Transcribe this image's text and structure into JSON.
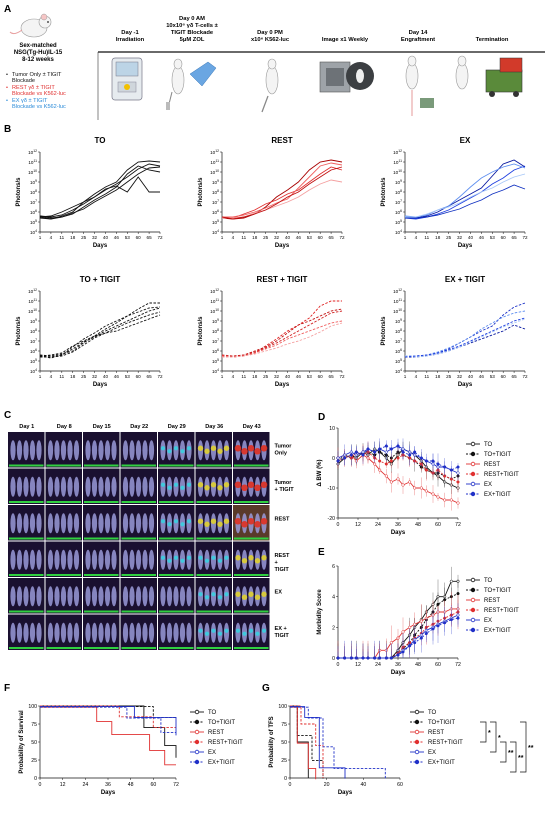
{
  "panel_letters": [
    "A",
    "B",
    "C",
    "D",
    "E",
    "F",
    "G"
  ],
  "panel_a": {
    "mouse": {
      "line1": "Sex-matched",
      "line2": "NSG(Tg-Hu)IL-15",
      "line3": "8-12 weeks"
    },
    "legend": [
      {
        "text": "Tumor Only ± TIGIT",
        "text2": "Blockade",
        "color": "#111111"
      },
      {
        "text": "REST γδ ± TIGIT",
        "text2": "Blockade vs K562-luc",
        "color": "#e03030"
      },
      {
        "text": "EX γδ ± TIGIT",
        "text2": "Blockade vs K562-luc",
        "color": "#2a8ad8"
      }
    ],
    "timeline": [
      {
        "l1": "Day -1",
        "l2": "Irradiation",
        "l3": "",
        "l4": ""
      },
      {
        "l1": "Day 0 AM",
        "l2": "10x10⁶ γδ T-cells ±",
        "l3": "TIGIT Blockade",
        "l4": "5μM ZOL"
      },
      {
        "l1": "Day 0 PM",
        "l2": "x10⁶ K562-luc",
        "l3": "",
        "l4": ""
      },
      {
        "l1": "Image x1 Weekly",
        "l2": "",
        "l3": "",
        "l4": ""
      },
      {
        "l1": "Day 14",
        "l2": "Engraftment",
        "l3": "",
        "l4": ""
      },
      {
        "l1": "Termination",
        "l2": "",
        "l3": "",
        "l4": ""
      }
    ]
  },
  "panel_b": {
    "ylabel": "Photons/s",
    "xlabel": "Days",
    "xticks": [
      "1",
      "4",
      "11",
      "18",
      "25",
      "32",
      "40",
      "46",
      "53",
      "60",
      "65",
      "72"
    ],
    "yticks_exp": [
      "4",
      "5",
      "6",
      "7",
      "8",
      "9",
      "10",
      "11",
      "12"
    ],
    "panels": [
      {
        "title": "TO",
        "color": "#111111",
        "colors": [
          "#111111",
          "#111111",
          "#111111",
          "#111111",
          "#111111"
        ],
        "dash": false
      },
      {
        "title": "REST",
        "color": "#d01818",
        "colors": [
          "#a80000",
          "#e03030",
          "#f06060",
          "#f4a0a0",
          "#c01010"
        ],
        "dash": false
      },
      {
        "title": "EX",
        "color": "#1828c8",
        "colors": [
          "#0818a0",
          "#2040e0",
          "#6090f0",
          "#a8c8f8",
          "#1030c0"
        ],
        "dash": false
      },
      {
        "title": "TO + TIGIT",
        "color": "#111111",
        "colors": [
          "#111111",
          "#111111",
          "#111111",
          "#111111",
          "#111111"
        ],
        "dash": true
      },
      {
        "title": "REST + TIGIT",
        "color": "#d01818",
        "colors": [
          "#e02020",
          "#c01010",
          "#f06060",
          "#f4a0a0",
          "#d02020"
        ],
        "dash": true
      },
      {
        "title": "EX + TIGIT",
        "color": "#1828c8",
        "colors": [
          "#1a30c8",
          "#0818a0",
          "#6090f0",
          "#a8c8f8",
          "#2040e0"
        ],
        "dash": true
      }
    ]
  },
  "panel_c": {
    "days": [
      "Day 1",
      "Day 8",
      "Day 15",
      "Day 22",
      "Day 29",
      "Day 36",
      "Day 43"
    ],
    "rows": [
      {
        "l1": "Tumor",
        "l2": "Only"
      },
      {
        "l1": "Tumor",
        "l2": "+ TIGIT"
      },
      {
        "l1": "REST",
        "l2": ""
      },
      {
        "l1": "REST",
        "l2": "+",
        "l3": "TIGIT"
      },
      {
        "l1": "EX",
        "l2": ""
      },
      {
        "l1": "EX +",
        "l2": "TIGIT"
      }
    ]
  },
  "group_legend": [
    {
      "name": "TO",
      "color": "#111111",
      "dash": false,
      "marker": "circle-open"
    },
    {
      "name": "TO+TIGIT",
      "color": "#111111",
      "dash": true,
      "marker": "circle-filled"
    },
    {
      "name": "REST",
      "color": "#e03030",
      "dash": false,
      "marker": "circle-open"
    },
    {
      "name": "REST+TIGIT",
      "color": "#e03030",
      "dash": true,
      "marker": "circle-filled"
    },
    {
      "name": "EX",
      "color": "#2030c8",
      "dash": false,
      "marker": "circle-open"
    },
    {
      "name": "EX+TIGIT",
      "color": "#2030c8",
      "dash": true,
      "marker": "circle-filled"
    }
  ],
  "panel_g_sig": [
    "*",
    "*",
    "**",
    "**",
    "**"
  ],
  "chart_data": [
    {
      "type": "line",
      "panel": "D",
      "ylabel": "Δ BW (%)",
      "xlabel": "Days",
      "x": [
        0,
        4,
        8,
        11,
        15,
        18,
        22,
        25,
        29,
        32,
        36,
        39,
        43,
        46,
        50,
        53,
        57,
        60,
        64,
        68,
        72
      ],
      "xticks": [
        0,
        12,
        24,
        36,
        48,
        60,
        72
      ],
      "yticks": [
        -20,
        -10,
        0,
        10
      ],
      "ylim": [
        -20,
        10
      ],
      "xlim": [
        0,
        72
      ],
      "series": [
        {
          "name": "TO",
          "values": [
            -2,
            0,
            1,
            0,
            2,
            1,
            3,
            2,
            0,
            -2,
            1,
            3,
            2,
            1,
            -1,
            -3,
            -5,
            -6,
            -8,
            -9,
            -10
          ]
        },
        {
          "name": "TO+TIGIT",
          "values": [
            -1,
            1,
            0,
            1,
            2,
            2,
            1,
            2,
            1,
            0,
            2,
            1,
            0,
            -1,
            -3,
            -4,
            -5,
            -5,
            -6,
            -7,
            -6
          ]
        },
        {
          "name": "REST",
          "values": [
            -1,
            0,
            1,
            -1,
            1,
            0,
            -2,
            -4,
            -6,
            -8,
            -7,
            -9,
            -8,
            -10,
            -10,
            -11,
            -12,
            -13,
            -14,
            -14,
            -15
          ]
        },
        {
          "name": "REST+TIGIT",
          "values": [
            0,
            1,
            0,
            2,
            1,
            2,
            0,
            -1,
            -2,
            -1,
            0,
            1,
            0,
            -1,
            -2,
            -4,
            -5,
            -4,
            -6,
            -7,
            -8
          ]
        },
        {
          "name": "EX",
          "values": [
            0,
            1,
            2,
            1,
            2,
            3,
            2,
            3,
            2,
            3,
            4,
            3,
            2,
            1,
            0,
            -1,
            -2,
            -3,
            -3,
            -4,
            -5
          ]
        },
        {
          "name": "EX+TIGIT",
          "values": [
            -1,
            0,
            1,
            2,
            1,
            3,
            2,
            3,
            4,
            3,
            4,
            2,
            1,
            2,
            0,
            -1,
            -1,
            -2,
            -3,
            -4,
            -3
          ]
        }
      ]
    },
    {
      "type": "line",
      "panel": "E",
      "ylabel": "Morbidity Score",
      "xlabel": "Days",
      "x": [
        0,
        4,
        8,
        11,
        15,
        18,
        22,
        25,
        29,
        32,
        36,
        39,
        43,
        46,
        50,
        53,
        57,
        60,
        64,
        68,
        72
      ],
      "xticks": [
        0,
        12,
        24,
        36,
        48,
        60,
        72
      ],
      "yticks": [
        0,
        2,
        4,
        6
      ],
      "ylim": [
        0,
        6
      ],
      "xlim": [
        0,
        72
      ],
      "series": [
        {
          "name": "TO",
          "values": [
            0,
            0,
            0,
            0,
            0,
            0,
            0,
            0,
            0,
            0,
            0.5,
            1,
            1.5,
            2,
            2.5,
            3,
            3.5,
            4,
            4,
            5,
            5
          ]
        },
        {
          "name": "TO+TIGIT",
          "values": [
            0,
            0,
            0,
            0,
            0,
            0,
            0,
            0,
            0,
            0,
            0.3,
            0.6,
            1,
            1.5,
            2,
            2.5,
            3,
            3.5,
            3.8,
            4,
            4.2
          ]
        },
        {
          "name": "REST",
          "values": [
            0,
            0,
            0,
            0,
            0,
            0,
            0,
            0.5,
            0.5,
            1,
            1.3,
            1.7,
            2,
            2.2,
            2.4,
            2.6,
            2.8,
            3,
            3,
            3.2,
            3.2
          ]
        },
        {
          "name": "REST+TIGIT",
          "values": [
            0,
            0,
            0,
            0,
            0,
            0,
            0,
            0,
            0,
            0,
            0.3,
            0.7,
            1,
            1.3,
            1.6,
            2,
            2.2,
            2.4,
            2.6,
            2.8,
            3
          ]
        },
        {
          "name": "EX",
          "values": [
            0,
            0,
            0,
            0,
            0,
            0,
            0,
            0,
            0,
            0,
            0.2,
            0.5,
            0.8,
            1.2,
            1.5,
            1.8,
            2,
            2.2,
            2.4,
            2.6,
            2.8
          ]
        },
        {
          "name": "EX+TIGIT",
          "values": [
            0,
            0,
            0,
            0,
            0,
            0,
            0,
            0,
            0,
            0,
            0.2,
            0.4,
            0.8,
            1,
            1.3,
            1.6,
            1.9,
            2.1,
            2.3,
            2.5,
            2.6
          ]
        }
      ]
    },
    {
      "type": "line",
      "panel": "F",
      "ylabel": "Probability of Survival",
      "xlabel": "Days",
      "xticks": [
        0,
        12,
        24,
        36,
        48,
        60,
        72
      ],
      "yticks": [
        0,
        25,
        50,
        75,
        100
      ],
      "ylim": [
        0,
        100
      ],
      "xlim": [
        0,
        72
      ],
      "series": [
        {
          "name": "TO",
          "steps": [
            [
              0,
              100
            ],
            [
              55,
              100
            ],
            [
              55,
              70
            ],
            [
              66,
              70
            ],
            [
              66,
              45
            ],
            [
              72,
              45
            ],
            [
              72,
              28
            ]
          ]
        },
        {
          "name": "TO+TIGIT",
          "steps": [
            [
              0,
              100
            ],
            [
              60,
              100
            ],
            [
              60,
              85
            ],
            [
              72,
              85
            ]
          ]
        },
        {
          "name": "REST",
          "steps": [
            [
              0,
              100
            ],
            [
              30,
              100
            ],
            [
              30,
              80
            ],
            [
              38,
              80
            ],
            [
              38,
              62
            ],
            [
              58,
              62
            ],
            [
              58,
              40
            ],
            [
              66,
              40
            ],
            [
              66,
              20
            ],
            [
              72,
              20
            ]
          ]
        },
        {
          "name": "REST+TIGIT",
          "steps": [
            [
              0,
              100
            ],
            [
              42,
              100
            ],
            [
              42,
              85
            ],
            [
              60,
              85
            ],
            [
              60,
              70
            ],
            [
              72,
              70
            ]
          ]
        },
        {
          "name": "EX",
          "steps": [
            [
              0,
              100
            ],
            [
              50,
              100
            ],
            [
              50,
              85
            ],
            [
              72,
              85
            ],
            [
              72,
              60
            ]
          ]
        },
        {
          "name": "EX+TIGIT",
          "steps": [
            [
              0,
              100
            ],
            [
              46,
              100
            ],
            [
              46,
              85
            ],
            [
              64,
              85
            ],
            [
              64,
              65
            ],
            [
              72,
              65
            ]
          ]
        }
      ]
    },
    {
      "type": "line",
      "panel": "G",
      "ylabel": "Probability of TFS",
      "xlabel": "Days",
      "xticks": [
        0,
        20,
        40,
        60
      ],
      "yticks": [
        0,
        25,
        50,
        75,
        100
      ],
      "ylim": [
        0,
        100
      ],
      "xlim": [
        0,
        60
      ],
      "series": [
        {
          "name": "TO",
          "steps": [
            [
              0,
              100
            ],
            [
              4,
              100
            ],
            [
              4,
              50
            ],
            [
              10,
              50
            ],
            [
              10,
              0
            ]
          ]
        },
        {
          "name": "TO+TIGIT",
          "steps": [
            [
              0,
              100
            ],
            [
              4,
              100
            ],
            [
              4,
              60
            ],
            [
              12,
              60
            ],
            [
              12,
              25
            ],
            [
              18,
              25
            ],
            [
              18,
              0
            ]
          ]
        },
        {
          "name": "REST",
          "steps": [
            [
              0,
              100
            ],
            [
              4,
              100
            ],
            [
              4,
              50
            ],
            [
              10,
              50
            ],
            [
              10,
              15
            ],
            [
              14,
              15
            ],
            [
              14,
              0
            ]
          ]
        },
        {
          "name": "REST+TIGIT",
          "steps": [
            [
              0,
              100
            ],
            [
              6,
              100
            ],
            [
              6,
              75
            ],
            [
              14,
              75
            ],
            [
              14,
              45
            ],
            [
              18,
              45
            ],
            [
              18,
              0
            ]
          ]
        },
        {
          "name": "EX",
          "steps": [
            [
              0,
              100
            ],
            [
              8,
              100
            ],
            [
              8,
              85
            ],
            [
              16,
              85
            ],
            [
              16,
              15
            ],
            [
              30,
              15
            ],
            [
              30,
              0
            ]
          ]
        },
        {
          "name": "EX+TIGIT",
          "steps": [
            [
              0,
              100
            ],
            [
              10,
              100
            ],
            [
              10,
              85
            ],
            [
              18,
              85
            ],
            [
              18,
              45
            ],
            [
              24,
              45
            ],
            [
              24,
              15
            ],
            [
              52,
              15
            ],
            [
              52,
              0
            ]
          ]
        }
      ]
    }
  ]
}
